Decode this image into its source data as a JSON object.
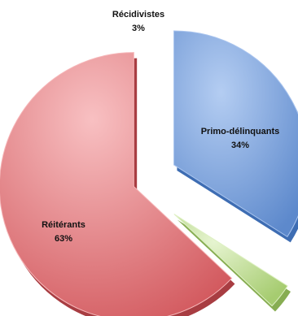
{
  "chart_data": {
    "type": "pie",
    "exploded": true,
    "three_d": true,
    "slices": [
      {
        "label": "Primo-délinquants",
        "value": 34,
        "value_label": "34%",
        "color": "#6f9ad8",
        "dark": "#3e6db3",
        "light": "#a9c4ee"
      },
      {
        "label": "Récidivistes",
        "value": 3,
        "value_label": "3%",
        "color": "#bcdc8e",
        "dark": "#87ad52",
        "light": "#def0c3"
      },
      {
        "label": "Réitérants",
        "value": 63,
        "value_label": "63%",
        "color": "#e4787c",
        "dark": "#a83d42",
        "light": "#f6b6b8"
      }
    ]
  }
}
